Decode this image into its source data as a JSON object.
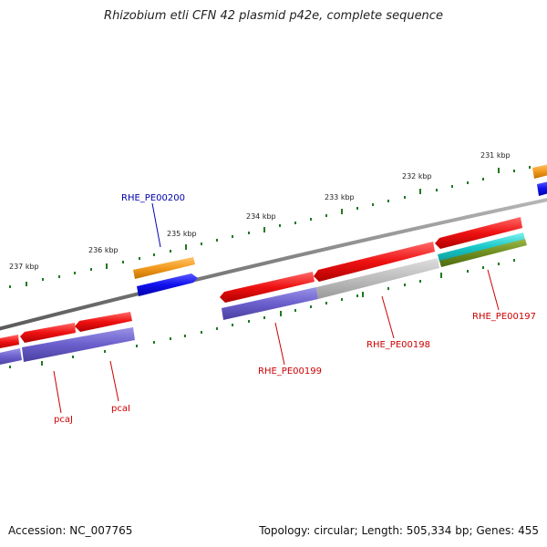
{
  "title": "Rhizobium etli CFN 42 plasmid p42e, complete sequence",
  "footer": {
    "accession": "Accession: NC_007765",
    "summary": "Topology: circular; Length: 505,334 bp; Genes: 455"
  },
  "scale_labels": [
    "237 kbp",
    "236 kbp",
    "235 kbp",
    "234 kbp",
    "233 kbp",
    "232 kbp",
    "231 kbp"
  ],
  "gene_labels": {
    "rhe_pe00200": "RHE_PE00200",
    "rhe_pe00199": "RHE_PE00199",
    "rhe_pe00198": "RHE_PE00198",
    "rhe_pe00197": "RHE_PE00197",
    "pcaj": "pcaJ",
    "pcai": "pcaI"
  },
  "colors": {
    "backbone": "#808080",
    "cds_red": "#ee1111",
    "cog_purple": "#6a5fcc",
    "cog_gray": "#bdbdbd",
    "cog_cyan": "#19c8c8",
    "cog_olive": "#6e8c1e",
    "orange": "#f29a1e",
    "blue": "#1010ee",
    "tick_green": "#1f7a1f",
    "label_red": "#cc0000",
    "label_blue": "#0000aa"
  }
}
